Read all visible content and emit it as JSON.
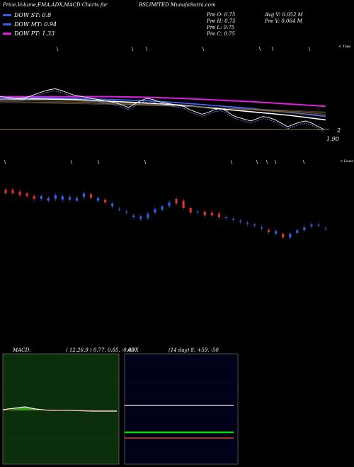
{
  "header": {
    "title_left": "Price,Volume,EMA,ADX,MACD Charts for",
    "title_center": "BSLIMITED MunafaSutra.com"
  },
  "dow": [
    {
      "label": "DOW ST: 0.8",
      "color": "#3b5fe0"
    },
    {
      "label": "DOW MT: 0.94",
      "color": "#3b5fe0"
    },
    {
      "label": "DOW PT: 1.33",
      "color": "#e020e0"
    }
  ],
  "prices": {
    "open": "Pre  O: 0.75",
    "high": "Pre  H: 0.75",
    "low": "Pre  L: 0.75",
    "close": "Pre  C: 0.75",
    "avg_volume": "Avg V: 0.052  M",
    "prev_volume": "Pre  V: 0.064  M"
  },
  "labels": {
    "tops": "< Tops",
    "lows": "< Lows",
    "axis_2": "2",
    "axis_190": "1.90"
  },
  "macd": {
    "label": "MACD:",
    "params": "( 12,26,9 ) 0.77, 0.85, -0.08"
  },
  "adx": {
    "label": "ADX",
    "params": "(14  day) 8, +59, -50"
  },
  "chart_data": {
    "type": "line",
    "price_series": {
      "name": "",
      "values": [
        1.33,
        1.32,
        1.31,
        1.3,
        1.31,
        1.34,
        1.38,
        1.42,
        1.45,
        1.47,
        1.44,
        1.4,
        1.36,
        1.34,
        1.32,
        1.3,
        1.28,
        1.26,
        1.24,
        1.22,
        1.18,
        1.14,
        1.2,
        1.26,
        1.3,
        1.28,
        1.24,
        1.22,
        1.2,
        1.18,
        1.16,
        1.1,
        1.06,
        1.02,
        1.05,
        1.1,
        1.12,
        1.08,
        1.0,
        0.96,
        0.93,
        0.9,
        0.94,
        0.98,
        0.96,
        0.92,
        0.86,
        0.8,
        0.84,
        0.88,
        0.9,
        0.86,
        0.8,
        0.75
      ]
    },
    "candles": [
      {
        "o": 1.3,
        "c": 1.34,
        "dir": "down"
      },
      {
        "o": 1.34,
        "c": 1.3,
        "dir": "down"
      },
      {
        "o": 1.32,
        "c": 1.28,
        "dir": "down"
      },
      {
        "o": 1.3,
        "c": 1.27,
        "dir": "down"
      },
      {
        "o": 1.27,
        "c": 1.24,
        "dir": "down"
      },
      {
        "o": 1.24,
        "c": 1.27,
        "dir": "up"
      },
      {
        "o": 1.25,
        "c": 1.22,
        "dir": "up"
      },
      {
        "o": 1.24,
        "c": 1.28,
        "dir": "up"
      },
      {
        "o": 1.27,
        "c": 1.23,
        "dir": "up"
      },
      {
        "o": 1.23,
        "c": 1.26,
        "dir": "up"
      },
      {
        "o": 1.25,
        "c": 1.22,
        "dir": "up"
      },
      {
        "o": 1.26,
        "c": 1.3,
        "dir": "up"
      },
      {
        "o": 1.29,
        "c": 1.25,
        "dir": "down"
      },
      {
        "o": 1.25,
        "c": 1.22,
        "dir": "up"
      },
      {
        "o": 1.23,
        "c": 1.2,
        "dir": "down"
      },
      {
        "o": 1.19,
        "c": 1.16,
        "dir": "up"
      },
      {
        "o": 1.13,
        "c": 1.12,
        "dir": "up"
      },
      {
        "o": 1.1,
        "c": 1.09,
        "dir": "up"
      },
      {
        "o": 1.06,
        "c": 1.04,
        "dir": "up"
      },
      {
        "o": 1.05,
        "c": 1.02,
        "dir": "up"
      },
      {
        "o": 1.03,
        "c": 1.08,
        "dir": "up"
      },
      {
        "o": 1.09,
        "c": 1.13,
        "dir": "up"
      },
      {
        "o": 1.12,
        "c": 1.16,
        "dir": "up"
      },
      {
        "o": 1.16,
        "c": 1.2,
        "dir": "up"
      },
      {
        "o": 1.24,
        "c": 1.19,
        "dir": "down"
      },
      {
        "o": 1.22,
        "c": 1.14,
        "dir": "down"
      },
      {
        "o": 1.14,
        "c": 1.09,
        "dir": "down"
      },
      {
        "o": 1.1,
        "c": 1.1,
        "dir": "up"
      },
      {
        "o": 1.1,
        "c": 1.06,
        "dir": "down"
      },
      {
        "o": 1.09,
        "c": 1.06,
        "dir": "down"
      },
      {
        "o": 1.08,
        "c": 1.04,
        "dir": "down"
      },
      {
        "o": 1.04,
        "c": 1.04,
        "dir": "up"
      },
      {
        "o": 1.02,
        "c": 1.01,
        "dir": "up"
      },
      {
        "o": 1.0,
        "c": 0.99,
        "dir": "up"
      },
      {
        "o": 0.98,
        "c": 0.97,
        "dir": "up"
      },
      {
        "o": 0.96,
        "c": 0.95,
        "dir": "up"
      },
      {
        "o": 0.93,
        "c": 0.92,
        "dir": "up"
      },
      {
        "o": 0.9,
        "c": 0.88,
        "dir": "down"
      },
      {
        "o": 0.89,
        "c": 0.86,
        "dir": "up"
      },
      {
        "o": 0.86,
        "c": 0.82,
        "dir": "down"
      },
      {
        "o": 0.82,
        "c": 0.86,
        "dir": "up"
      },
      {
        "o": 0.87,
        "c": 0.9,
        "dir": "up"
      },
      {
        "o": 0.9,
        "c": 0.93,
        "dir": "up"
      },
      {
        "o": 0.94,
        "c": 0.96,
        "dir": "up"
      },
      {
        "o": 0.96,
        "c": 0.96,
        "dir": "up"
      },
      {
        "o": 0.92,
        "c": 0.92,
        "dir": "up"
      }
    ],
    "ema_lines": [
      {
        "name": "",
        "color": "#e020e0",
        "values": [
          1.33,
          1.33,
          1.33,
          1.33,
          1.32,
          1.3,
          1.27,
          1.24,
          1.2,
          1.16
        ]
      },
      {
        "name": "",
        "color": "#4466ff",
        "values": [
          1.3,
          1.31,
          1.3,
          1.28,
          1.26,
          1.22,
          1.17,
          1.12,
          1.05,
          0.98
        ]
      },
      {
        "name": "",
        "color": "#ffffff",
        "values": [
          1.28,
          1.29,
          1.28,
          1.25,
          1.22,
          1.18,
          1.12,
          1.06,
          1.0,
          0.92
        ]
      }
    ],
    "macd": {
      "macd": 0.77,
      "signal": 0.85,
      "histogram": -0.08
    },
    "adx": {
      "adx": 8,
      "plus_di": 59,
      "minus_di": 50
    }
  }
}
